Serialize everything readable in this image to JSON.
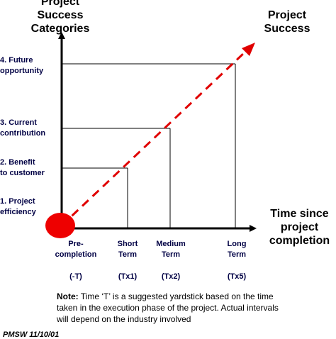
{
  "headings": {
    "y_axis_title": [
      "Project",
      "Success",
      "Categories"
    ],
    "diagonal_title": [
      "Project",
      "Success"
    ],
    "x_axis_title": [
      "Time since",
      "project",
      "completion"
    ]
  },
  "y_categories": [
    {
      "lines": [
        "1. Project",
        "efficiency"
      ],
      "level": 1
    },
    {
      "lines": [
        "2. Benefit",
        "to customer"
      ],
      "level": 2
    },
    {
      "lines": [
        "3. Current",
        "contribution"
      ],
      "level": 3
    },
    {
      "lines": [
        "4. Future",
        "opportunity"
      ],
      "level": 4
    }
  ],
  "x_categories": [
    {
      "lines": [
        "Pre-",
        "completion"
      ],
      "code": "(-T)",
      "step": 0
    },
    {
      "lines": [
        "Short",
        "Term"
      ],
      "code": "(Tx1)",
      "step": 1
    },
    {
      "lines": [
        "Medium",
        "Term"
      ],
      "code": "(Tx2)",
      "step": 2
    },
    {
      "lines": [
        "Long",
        "Term"
      ],
      "code": "(Tx5)",
      "step": 3
    }
  ],
  "note": {
    "label": "Note:",
    "lines": [
      "Time ‘T’ is a suggested yardstick based on the time",
      "taken in the execution phase of the project. Actual intervals",
      "will depend on the industry involved"
    ]
  },
  "footer": "PMSW 11/10/01",
  "colors": {
    "axis": "#000000",
    "trend": "#e00000",
    "origin": "#ee0000",
    "label_text": "#000044"
  }
}
